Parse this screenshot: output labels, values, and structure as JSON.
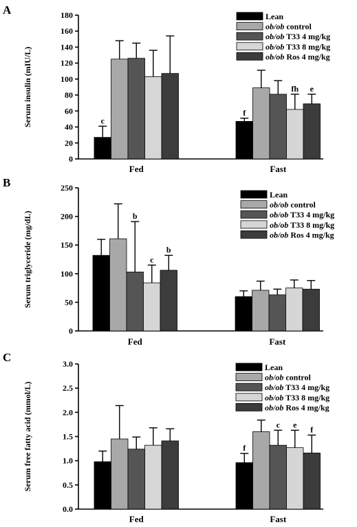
{
  "chart_data": [
    {
      "type": "bar",
      "panel": "A",
      "ylabel": "Serum insulin (mIU/L)",
      "ylim": [
        0,
        180
      ],
      "yticks": [
        "0",
        "20",
        "40",
        "60",
        "80",
        "100",
        "120",
        "140",
        "160",
        "180"
      ],
      "categories": [
        "Fed",
        "Fast"
      ],
      "legend_position": "top-right",
      "series": [
        {
          "name": "Lean",
          "italic": "",
          "rest": "Lean",
          "color": "#000000",
          "values": [
            27,
            47
          ],
          "errors": [
            14,
            4
          ],
          "sig": [
            "c",
            "f"
          ]
        },
        {
          "name": "ob/ob control",
          "italic": "ob/ob",
          "rest": " control",
          "color": "#a8a8a8",
          "values": [
            125,
            89
          ],
          "errors": [
            23,
            22
          ],
          "sig": [
            "",
            ""
          ]
        },
        {
          "name": "ob/ob T33 4 mg/kg",
          "italic": "ob/ob",
          "rest": " T33 4 mg/kg",
          "color": "#555555",
          "values": [
            126,
            81
          ],
          "errors": [
            19,
            17
          ],
          "sig": [
            "",
            ""
          ]
        },
        {
          "name": "ob/ob T33 8 mg/kg",
          "italic": "ob/ob",
          "rest": " T33 8 mg/kg",
          "color": "#d6d6d6",
          "values": [
            103,
            62
          ],
          "errors": [
            33,
            19
          ],
          "sig": [
            "",
            "fh"
          ]
        },
        {
          "name": "ob/ob Ros 4 mg/kg",
          "italic": "ob/ob",
          "rest": " Ros 4 mg/kg",
          "color": "#3c3c3c",
          "values": [
            107,
            69
          ],
          "errors": [
            47,
            12
          ],
          "sig": [
            "",
            "e"
          ]
        }
      ]
    },
    {
      "type": "bar",
      "panel": "B",
      "ylabel": "Serum triglyceride (mg/dL)",
      "ylim": [
        0,
        250
      ],
      "yticks": [
        "0",
        "50",
        "100",
        "150",
        "200",
        "250"
      ],
      "categories": [
        "Fed",
        "Fast"
      ],
      "legend_position": "top-right",
      "series": [
        {
          "name": "Lean",
          "italic": "",
          "rest": "Lean",
          "color": "#000000",
          "values": [
            132,
            60
          ],
          "errors": [
            28,
            10
          ],
          "sig": [
            "",
            ""
          ]
        },
        {
          "name": "ob/ob control",
          "italic": "ob/ob",
          "rest": " control",
          "color": "#a8a8a8",
          "values": [
            161,
            71
          ],
          "errors": [
            61,
            16
          ],
          "sig": [
            "",
            ""
          ]
        },
        {
          "name": "ob/ob T33 4 mg/kg",
          "italic": "ob/ob",
          "rest": " T33 4 mg/kg",
          "color": "#555555",
          "values": [
            103,
            63
          ],
          "errors": [
            88,
            10
          ],
          "sig": [
            "b",
            ""
          ]
        },
        {
          "name": "ob/ob T33 8 mg/kg",
          "italic": "ob/ob",
          "rest": " T33 8 mg/kg",
          "color": "#d6d6d6",
          "values": [
            84,
            75
          ],
          "errors": [
            31,
            14
          ],
          "sig": [
            "c",
            ""
          ]
        },
        {
          "name": "ob/ob Ros 4 mg/kg",
          "italic": "ob/ob",
          "rest": " Ros 4 mg/kg",
          "color": "#3c3c3c",
          "values": [
            106,
            73
          ],
          "errors": [
            26,
            15
          ],
          "sig": [
            "b",
            ""
          ]
        }
      ]
    },
    {
      "type": "bar",
      "panel": "C",
      "ylabel": "Serum free fatty acid (mmol/L)",
      "ylim": [
        0,
        3
      ],
      "yticks": [
        "0.0",
        "0.5",
        "1.0",
        "1.5",
        "2.0",
        "2.5",
        "3.0"
      ],
      "categories": [
        "Fed",
        "Fast"
      ],
      "legend_position": "top-right",
      "series": [
        {
          "name": "Lean",
          "italic": "",
          "rest": "Lean",
          "color": "#000000",
          "values": [
            0.98,
            0.96
          ],
          "errors": [
            0.22,
            0.19
          ],
          "sig": [
            "",
            "f"
          ]
        },
        {
          "name": "ob/ob control",
          "italic": "ob/ob",
          "rest": " control",
          "color": "#a8a8a8",
          "values": [
            1.45,
            1.6
          ],
          "errors": [
            0.69,
            0.24
          ],
          "sig": [
            "",
            ""
          ]
        },
        {
          "name": "ob/ob T33 4 mg/kg",
          "italic": "ob/ob",
          "rest": " T33 4 mg/kg",
          "color": "#555555",
          "values": [
            1.24,
            1.32
          ],
          "errors": [
            0.25,
            0.31
          ],
          "sig": [
            "",
            "c"
          ]
        },
        {
          "name": "ob/ob T33 8 mg/kg",
          "italic": "ob/ob",
          "rest": " T33 8 mg/kg",
          "color": "#d6d6d6",
          "values": [
            1.32,
            1.27
          ],
          "errors": [
            0.36,
            0.36
          ],
          "sig": [
            "",
            "e"
          ]
        },
        {
          "name": "ob/ob Ros 4 mg/kg",
          "italic": "ob/ob",
          "rest": " Ros 4 mg/kg",
          "color": "#3c3c3c",
          "values": [
            1.41,
            1.16
          ],
          "errors": [
            0.25,
            0.37
          ],
          "sig": [
            "",
            "f"
          ]
        }
      ]
    }
  ]
}
